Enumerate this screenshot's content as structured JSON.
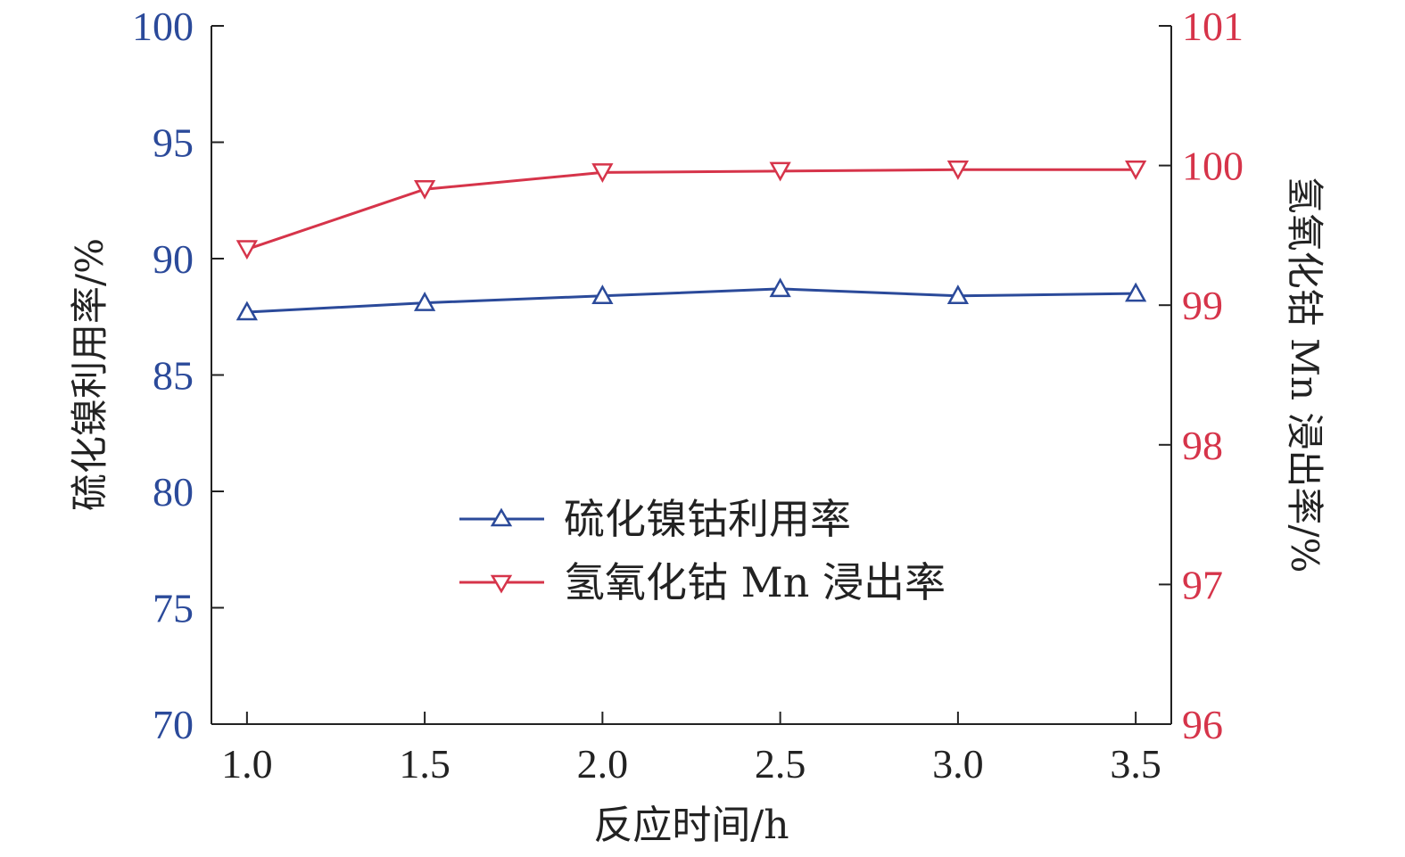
{
  "chart_data": {
    "type": "line",
    "xlabel": "反应时间/h",
    "ylabel_left": "硫化镍利用率/%",
    "ylabel_right": "氢氧化钴 Mn 浸出率/%",
    "x": [
      1.0,
      1.5,
      2.0,
      2.5,
      3.0,
      3.5
    ],
    "x_tick_labels": [
      "1.0",
      "1.5",
      "2.0",
      "2.5",
      "3.0",
      "3.5"
    ],
    "xlim": [
      0.9,
      3.6
    ],
    "ylim_left": [
      70,
      100
    ],
    "ylim_right": [
      96,
      101
    ],
    "y_ticks_left": [
      "70",
      "75",
      "80",
      "85",
      "90",
      "95",
      "100"
    ],
    "y_ticks_right": [
      "96",
      "97",
      "98",
      "99",
      "100",
      "101"
    ],
    "grid": false,
    "legend_position": "center",
    "series": [
      {
        "name": "硫化镍钴利用率",
        "axis": "left",
        "marker": "triangle-up",
        "color": "#2b4a9a",
        "values": [
          87.7,
          88.1,
          88.4,
          88.7,
          88.4,
          88.5
        ]
      },
      {
        "name": "氢氧化钴 Mn 浸出率",
        "axis": "right",
        "marker": "triangle-down",
        "color": "#d6344a",
        "values": [
          99.4,
          99.83,
          99.95,
          99.96,
          99.97,
          99.97
        ]
      }
    ]
  }
}
